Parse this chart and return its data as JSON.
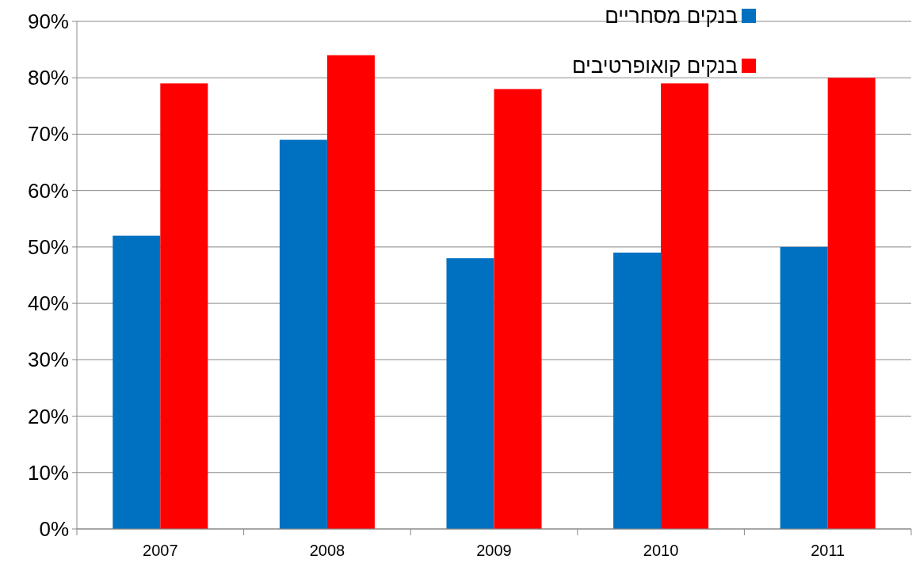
{
  "chart_data": {
    "type": "bar",
    "categories": [
      "2007",
      "2008",
      "2009",
      "2010",
      "2011"
    ],
    "series": [
      {
        "name": "בנקים מסחריים",
        "color": "#0070c0",
        "values": [
          52,
          69,
          48,
          49,
          50
        ]
      },
      {
        "name": "בנקים קואופרטיבים",
        "color": "#ff0000",
        "values": [
          79,
          84,
          78,
          79,
          80
        ]
      }
    ],
    "ylim": [
      0,
      90
    ],
    "yticks": [
      {
        "value": 0,
        "label": "0%"
      },
      {
        "value": 10,
        "label": "10%"
      },
      {
        "value": 20,
        "label": "20%"
      },
      {
        "value": 30,
        "label": "30%"
      },
      {
        "value": 40,
        "label": "40%"
      },
      {
        "value": 50,
        "label": "50%"
      },
      {
        "value": 60,
        "label": "60%"
      },
      {
        "value": 70,
        "label": "70%"
      },
      {
        "value": 80,
        "label": "80%"
      },
      {
        "value": 90,
        "label": "90%"
      }
    ],
    "grid": "y",
    "legend": "top right"
  }
}
